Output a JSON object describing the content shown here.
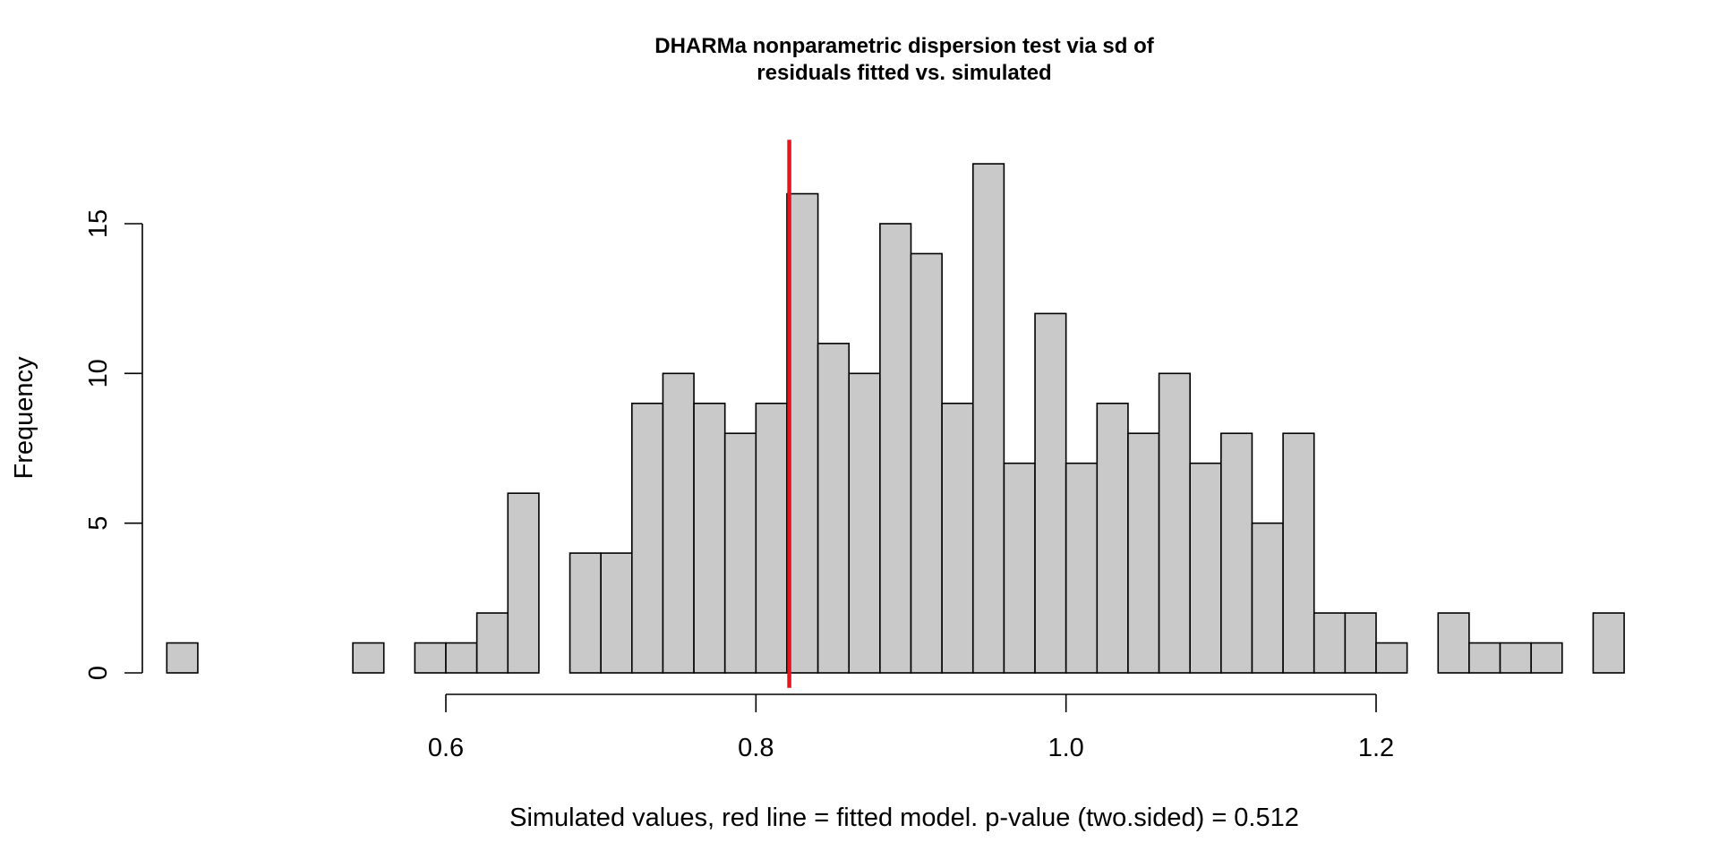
{
  "chart_data": {
    "type": "bar",
    "title_lines": [
      "DHARMa nonparametric dispersion test via sd of",
      "residuals fitted vs. simulated"
    ],
    "xlabel": "Simulated values, red line = fitted model. p-value (two.sided) = 0.512",
    "ylabel": "Frequency",
    "bin_start": 0.42,
    "bin_width": 0.02,
    "values": [
      1,
      0,
      0,
      0,
      0,
      0,
      1,
      0,
      1,
      1,
      2,
      6,
      0,
      4,
      4,
      9,
      10,
      9,
      8,
      9,
      16,
      11,
      10,
      15,
      14,
      9,
      17,
      7,
      12,
      7,
      9,
      8,
      10,
      7,
      8,
      5,
      8,
      2,
      2,
      1,
      0,
      2,
      1,
      1,
      1,
      0,
      2
    ],
    "x_ticks": [
      {
        "value": 0.6,
        "label": "0.6"
      },
      {
        "value": 0.8,
        "label": "0.8"
      },
      {
        "value": 1.0,
        "label": "1.0"
      },
      {
        "value": 1.2,
        "label": "1.2"
      }
    ],
    "y_ticks": [
      {
        "value": 0,
        "label": "0"
      },
      {
        "value": 5,
        "label": "5"
      },
      {
        "value": 10,
        "label": "10"
      },
      {
        "value": 15,
        "label": "15"
      }
    ],
    "fitted_value": 0.8215,
    "bar_color": "#c9c9c9",
    "line_color": "#e8141c",
    "grid": false,
    "legend": false
  }
}
